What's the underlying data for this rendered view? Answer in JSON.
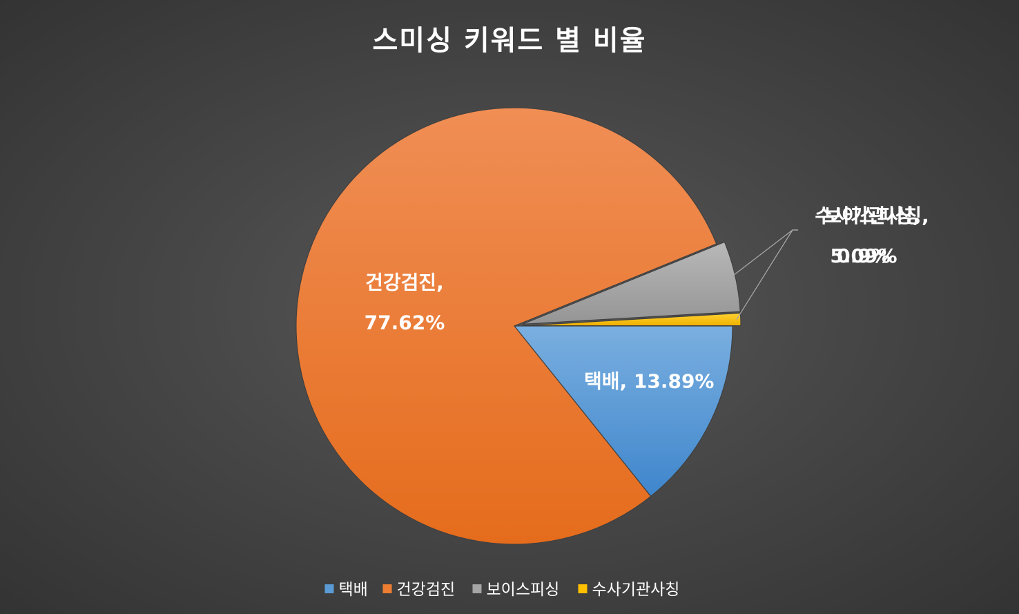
{
  "chart_data": {
    "type": "pie",
    "title": "스미싱 키워드 별 비율",
    "start_angle_deg": 90,
    "slices": [
      {
        "label": "택배",
        "value": 13.89,
        "value_text": "13.89%",
        "color": "#5b9bd5",
        "color_light": "#7aafe0",
        "color_dark": "#3f86cc",
        "explode": false
      },
      {
        "label": "건강검진",
        "value": 77.62,
        "value_text": "77.62%",
        "color": "#ed7d31",
        "color_light": "#f08e55",
        "color_dark": "#e56c1c",
        "explode": false
      },
      {
        "label": "보이스피싱",
        "value": 5.09,
        "value_text": "5.09%",
        "color": "#a5a5a5",
        "color_light": "#b8b8b8",
        "color_dark": "#959595",
        "explode": true
      },
      {
        "label": "수사기관사칭",
        "value": 0.9,
        "value_text": "0.9%",
        "color": "#ffc000",
        "color_light": "#ffd233",
        "color_dark": "#f0b000",
        "explode": true
      }
    ],
    "data_labels": [
      {
        "label": "택배,",
        "value_text": "13.89%",
        "placement": "inside",
        "single_line": true
      },
      {
        "label": "건강검진,",
        "value_text": "77.62%",
        "placement": "inside",
        "single_line": false
      },
      {
        "label": "보이스피싱,",
        "value_text": "5.09%",
        "placement": "outside-leader",
        "single_line": false
      },
      {
        "label": "수사기관사칭,",
        "value_text": "0.9%",
        "placement": "outside-leader",
        "single_line": false
      }
    ],
    "legend": {
      "position": "bottom",
      "entries": [
        "택배",
        "건강검진",
        "보이스피싱",
        "수사기관사칭"
      ]
    }
  }
}
